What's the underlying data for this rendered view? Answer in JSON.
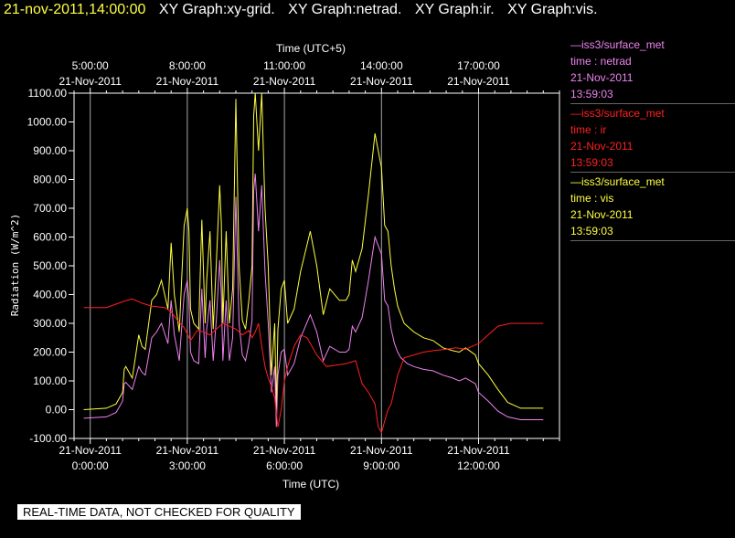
{
  "header": {
    "timestamp": "21-nov-2011,14:00:00",
    "graphs": [
      "XY Graph:xy-grid.",
      "XY Graph:netrad.",
      "XY Graph:ir.",
      "XY Graph:vis."
    ]
  },
  "disclaimer": "REAL-TIME DATA, NOT CHECKED FOR QUALITY",
  "legend": [
    {
      "source": "iss3/surface_met",
      "field": "time : netrad",
      "date": "21-Nov-2011",
      "time": "13:59:03",
      "color": "#ee82ee"
    },
    {
      "source": "iss3/surface_met",
      "field": "time : ir",
      "date": "21-Nov-2011",
      "time": "13:59:03",
      "color": "#ff2020"
    },
    {
      "source": "iss3/surface_met",
      "field": "time : vis",
      "date": "21-Nov-2011",
      "time": "13:59:03",
      "color": "#ffff40"
    }
  ],
  "chart_data": {
    "type": "line",
    "xlabel": "Time (UTC)",
    "x2label": "Time (UTC+5)",
    "ylabel": "Radiation (W/m^2)",
    "xlim": [
      -0.5,
      14.5
    ],
    "ylim": [
      -100,
      1100
    ],
    "grid": true,
    "legend_position": "right",
    "yticks": [
      -100,
      0,
      100,
      200,
      300,
      400,
      500,
      600,
      700,
      800,
      900,
      1000,
      1100
    ],
    "ytick_labels": [
      "-100.00",
      "0.00",
      "100.00",
      "200.00",
      "300.00",
      "400.00",
      "500.00",
      "600.00",
      "700.00",
      "800.00",
      "900.00",
      "1000.00",
      "1100.00"
    ],
    "xticks": [
      0,
      3,
      6,
      9,
      12
    ],
    "xtick_labels": [
      [
        "21-Nov-2011",
        "0:00:00"
      ],
      [
        "21-Nov-2011",
        "3:00:00"
      ],
      [
        "21-Nov-2011",
        "6:00:00"
      ],
      [
        "21-Nov-2011",
        "9:00:00"
      ],
      [
        "21-Nov-2011",
        "12:00:00"
      ]
    ],
    "x2tick_labels": [
      [
        "5:00:00",
        "21-Nov-2011"
      ],
      [
        "8:00:00",
        "21-Nov-2011"
      ],
      [
        "11:00:00",
        "21-Nov-2011"
      ],
      [
        "14:00:00",
        "21-Nov-2011"
      ],
      [
        "17:00:00",
        "21-Nov-2011"
      ]
    ],
    "series": [
      {
        "name": "iss3/surface_met time : vis",
        "color": "#ffff40",
        "x": [
          -0.2,
          0.5,
          0.8,
          1.0,
          1.05,
          1.1,
          1.3,
          1.5,
          1.6,
          1.7,
          1.9,
          2.05,
          2.2,
          2.4,
          2.5,
          2.6,
          2.75,
          2.9,
          3.0,
          3.05,
          3.1,
          3.2,
          3.35,
          3.45,
          3.55,
          3.6,
          3.7,
          3.8,
          3.9,
          4.0,
          4.05,
          4.1,
          4.2,
          4.3,
          4.4,
          4.5,
          4.6,
          4.7,
          4.8,
          4.9,
          5.0,
          5.05,
          5.1,
          5.2,
          5.3,
          5.4,
          5.5,
          5.6,
          5.7,
          5.75,
          5.8,
          5.9,
          6.0,
          6.1,
          6.3,
          6.5,
          6.8,
          7.0,
          7.2,
          7.4,
          7.7,
          7.9,
          8.0,
          8.1,
          8.2,
          8.4,
          8.6,
          8.8,
          9.0,
          9.1,
          9.2,
          9.3,
          9.4,
          9.5,
          9.6,
          9.7,
          9.8,
          10.0,
          10.3,
          10.6,
          10.9,
          11.2,
          11.4,
          11.6,
          11.9,
          12.0,
          12.3,
          12.6,
          12.9,
          13.3,
          14.0
        ],
        "y": [
          0,
          5,
          20,
          60,
          140,
          150,
          110,
          260,
          220,
          210,
          380,
          400,
          450,
          350,
          580,
          400,
          270,
          640,
          700,
          620,
          350,
          300,
          280,
          660,
          300,
          450,
          620,
          280,
          520,
          780,
          650,
          300,
          620,
          300,
          420,
          1080,
          500,
          310,
          280,
          380,
          500,
          1020,
          1100,
          900,
          1100,
          700,
          500,
          120,
          300,
          0,
          280,
          420,
          450,
          300,
          350,
          480,
          620,
          500,
          330,
          420,
          380,
          380,
          400,
          520,
          480,
          560,
          750,
          960,
          840,
          640,
          620,
          500,
          420,
          360,
          330,
          300,
          290,
          270,
          250,
          240,
          215,
          205,
          200,
          215,
          190,
          160,
          120,
          70,
          25,
          5,
          5
        ]
      },
      {
        "name": "iss3/surface_met time : netrad",
        "color": "#ee82ee",
        "x": [
          -0.2,
          0.5,
          0.8,
          1.0,
          1.05,
          1.1,
          1.3,
          1.5,
          1.6,
          1.7,
          1.9,
          2.05,
          2.2,
          2.4,
          2.5,
          2.6,
          2.75,
          2.9,
          3.0,
          3.05,
          3.1,
          3.2,
          3.35,
          3.45,
          3.55,
          3.6,
          3.7,
          3.8,
          3.9,
          4.0,
          4.05,
          4.1,
          4.2,
          4.3,
          4.4,
          4.5,
          4.6,
          4.7,
          4.8,
          4.9,
          5.0,
          5.05,
          5.1,
          5.2,
          5.3,
          5.4,
          5.5,
          5.6,
          5.7,
          5.75,
          5.8,
          5.9,
          6.0,
          6.1,
          6.3,
          6.5,
          6.8,
          7.0,
          7.2,
          7.4,
          7.7,
          7.9,
          8.0,
          8.1,
          8.2,
          8.4,
          8.6,
          8.8,
          9.0,
          9.1,
          9.2,
          9.3,
          9.4,
          9.5,
          9.6,
          9.7,
          9.8,
          10.0,
          10.3,
          10.6,
          10.9,
          11.2,
          11.4,
          11.6,
          11.9,
          12.0,
          12.3,
          12.6,
          12.9,
          13.3,
          14.0
        ],
        "y": [
          -30,
          -25,
          -10,
          30,
          90,
          95,
          70,
          150,
          130,
          120,
          250,
          270,
          300,
          230,
          380,
          260,
          170,
          400,
          450,
          380,
          200,
          170,
          160,
          420,
          180,
          280,
          380,
          170,
          320,
          520,
          400,
          170,
          380,
          170,
          250,
          740,
          300,
          190,
          170,
          230,
          310,
          760,
          820,
          620,
          780,
          480,
          300,
          60,
          150,
          -60,
          120,
          200,
          210,
          120,
          160,
          250,
          330,
          270,
          170,
          220,
          200,
          200,
          210,
          290,
          270,
          320,
          450,
          600,
          540,
          380,
          360,
          280,
          230,
          200,
          180,
          170,
          160,
          150,
          140,
          135,
          120,
          110,
          100,
          110,
          90,
          60,
          30,
          -5,
          -25,
          -35,
          -35
        ]
      },
      {
        "name": "iss3/surface_met time : ir",
        "color": "#ff2020",
        "x": [
          -0.2,
          0.5,
          1.0,
          1.3,
          1.6,
          1.9,
          2.3,
          2.5,
          2.7,
          2.9,
          3.1,
          3.3,
          3.5,
          3.7,
          3.9,
          4.1,
          4.3,
          4.5,
          4.7,
          4.9,
          5.0,
          5.1,
          5.2,
          5.3,
          5.4,
          5.5,
          5.6,
          5.7,
          5.8,
          5.9,
          6.0,
          6.1,
          6.3,
          6.5,
          6.7,
          7.0,
          7.3,
          7.6,
          7.9,
          8.2,
          8.4,
          8.6,
          8.8,
          8.9,
          9.0,
          9.1,
          9.2,
          9.3,
          9.5,
          9.7,
          10.0,
          10.3,
          10.6,
          11.0,
          11.3,
          11.6,
          11.8,
          12.0,
          12.3,
          12.6,
          13.0,
          13.5,
          14.0
        ],
        "y": [
          355,
          355,
          375,
          385,
          370,
          360,
          355,
          340,
          310,
          285,
          240,
          275,
          270,
          260,
          280,
          300,
          290,
          280,
          260,
          275,
          250,
          270,
          300,
          220,
          150,
          110,
          80,
          40,
          -60,
          0,
          100,
          150,
          220,
          260,
          250,
          190,
          150,
          155,
          160,
          170,
          90,
          60,
          20,
          -60,
          -80,
          -40,
          0,
          20,
          120,
          180,
          190,
          200,
          205,
          210,
          215,
          210,
          220,
          230,
          260,
          290,
          300,
          300,
          300
        ]
      }
    ]
  }
}
